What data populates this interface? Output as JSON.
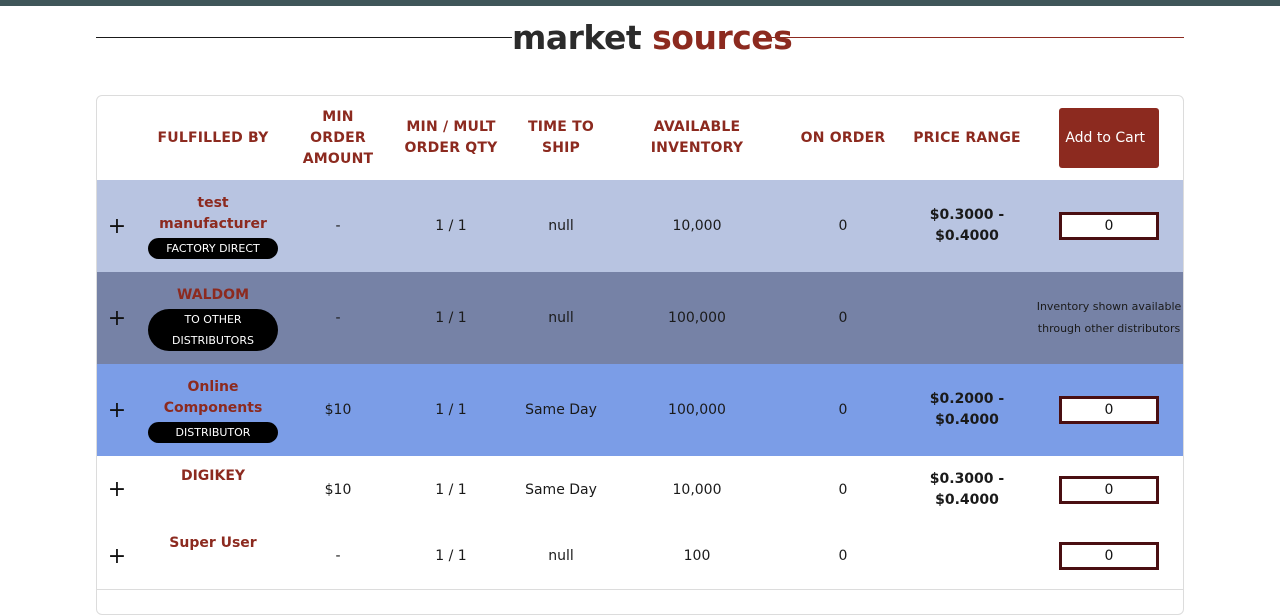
{
  "title": {
    "word1": "market",
    "word2": "sources"
  },
  "header": {
    "fulfilled_by": "FULFILLED BY",
    "min_order_amount": "MIN ORDER AMOUNT",
    "min_mult_order_qty": "MIN / MULT ORDER QTY",
    "time_to_ship": "TIME TO SHIP",
    "available_inventory": "AVAILABLE INVENTORY",
    "on_order": "ON ORDER",
    "price_range": "PRICE RANGE",
    "add_to_cart": "Add to Cart"
  },
  "rows": [
    {
      "expand": "+",
      "name": "test manufacturer",
      "badge": "FACTORY DIRECT",
      "min_amount": "-",
      "min_mult": "1 / 1",
      "ship": "null",
      "inventory": "10,000",
      "on_order": "0",
      "price": "$0.3000 - $0.4000",
      "qty": "0",
      "note": "",
      "bg": "#b8c4e1"
    },
    {
      "expand": "+",
      "name": "WALDOM",
      "badge": "TO OTHER DISTRIBUTORS",
      "min_amount": "-",
      "min_mult": "1 / 1",
      "ship": "null",
      "inventory": "100,000",
      "on_order": "0",
      "price": "",
      "qty": "",
      "note": "Inventory shown available through other distributors",
      "bg": "#7682a6"
    },
    {
      "expand": "+",
      "name": "Online Components",
      "badge": "DISTRIBUTOR",
      "min_amount": "$10",
      "min_mult": "1 / 1",
      "ship": "Same Day",
      "inventory": "100,000",
      "on_order": "0",
      "price": "$0.2000 - $0.4000",
      "qty": "0",
      "note": "",
      "bg": "#7b9de7"
    },
    {
      "expand": "+",
      "name": "DIGIKEY",
      "badge": "",
      "min_amount": "$10",
      "min_mult": "1 / 1",
      "ship": "Same Day",
      "inventory": "10,000",
      "on_order": "0",
      "price": "$0.3000 - $0.4000",
      "qty": "0",
      "note": "",
      "bg": "#ffffff"
    },
    {
      "expand": "+",
      "name": "Super User",
      "badge": "",
      "min_amount": "-",
      "min_mult": "1 / 1",
      "ship": "null",
      "inventory": "100",
      "on_order": "0",
      "price": "",
      "qty": "0",
      "note": "",
      "bg": "#ffffff"
    }
  ],
  "colors": {
    "accent": "#8c2a1f",
    "topbar": "#3f5659",
    "input_border": "#4a0f12"
  }
}
